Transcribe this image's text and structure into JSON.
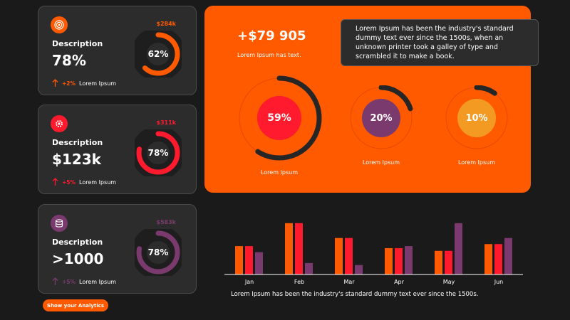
{
  "cards": [
    {
      "description": "Description",
      "value": "78%",
      "change": "+2%",
      "change_label": "Lorem Ipsum",
      "top_value": "$284k",
      "percent": 62,
      "percent_label": "62%",
      "color": "#ff5a00",
      "icon": "target-icon"
    },
    {
      "description": "Description",
      "value": "$123k",
      "change": "+5%",
      "change_label": "Lorem Ipsum",
      "top_value": "$311k",
      "percent": 78,
      "percent_label": "78%",
      "color": "#ff1a2e",
      "icon": "gear-icon"
    },
    {
      "description": "Description",
      "value": ">1000",
      "change": "+5%",
      "change_label": "Lorem Ipsum",
      "top_value": "$583k",
      "percent": 78,
      "percent_label": "78%",
      "color": "#7b3a6e",
      "icon": "database-icon"
    }
  ],
  "button": {
    "label": "Show your Analytics"
  },
  "panel": {
    "amount": "+$79 905",
    "amount_sub": "Lorem Ipsum has text.",
    "tooltip": "Lorem Ipsum has been the industry's standard dummy text ever since the 1500s, when an unknown printer took a galley of type and scrambled it to make a book.",
    "rings": [
      {
        "percent": 59,
        "label": "59%",
        "caption": "Lorem Ipsum",
        "color": "#ff1a2e"
      },
      {
        "percent": 20,
        "label": "20%",
        "caption": "Lorem Ipsum",
        "color": "#7b3a6e"
      },
      {
        "percent": 10,
        "label": "10%",
        "caption": "Lorem Ipsum",
        "color": "#f39a22"
      }
    ]
  },
  "chart_data": {
    "type": "bar",
    "categories": [
      "Jan",
      "Feb",
      "Mar",
      "Apr",
      "May",
      "Jun"
    ],
    "series": [
      {
        "values": [
          42,
          76,
          54,
          39,
          35,
          45
        ],
        "color": "#ff5a00"
      },
      {
        "values": [
          42,
          76,
          54,
          39,
          35,
          45
        ],
        "color": "#ff1a2e"
      },
      {
        "values": [
          33,
          17,
          14,
          42,
          76,
          54
        ],
        "color": "#7b3a6e"
      }
    ],
    "ylim": [
      0,
      80
    ],
    "grid": false,
    "legend": "none"
  },
  "chart_note": "Lorem Ipsum has been the industry's standard dummy text ever since the 1500s."
}
